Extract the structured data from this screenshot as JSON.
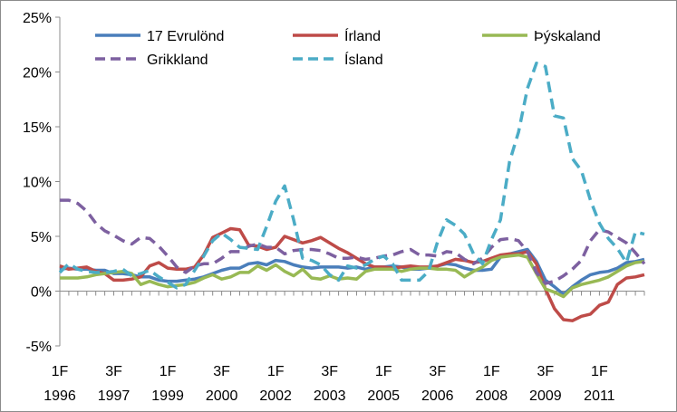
{
  "chart_data": {
    "type": "line",
    "ylim": [
      -5,
      25
    ],
    "y_ticks": [
      "-5%",
      "0%",
      "5%",
      "10%",
      "15%",
      "20%",
      "25%"
    ],
    "y_tick_values": [
      -5,
      0,
      5,
      10,
      15,
      20,
      25
    ],
    "x_ticks": [
      {
        "q": "1F",
        "year": "1996",
        "index": 0
      },
      {
        "q": "3F",
        "year": "1997",
        "index": 6
      },
      {
        "q": "1F",
        "year": "1999",
        "index": 12
      },
      {
        "q": "3F",
        "year": "2000",
        "index": 18
      },
      {
        "q": "1F",
        "year": "2002",
        "index": 24
      },
      {
        "q": "3F",
        "year": "2003",
        "index": 30
      },
      {
        "q": "1F",
        "year": "2005",
        "index": 36
      },
      {
        "q": "3F",
        "year": "2006",
        "index": 42
      },
      {
        "q": "1F",
        "year": "2008",
        "index": 48
      },
      {
        "q": "3F",
        "year": "2009",
        "index": 54
      },
      {
        "q": "1F",
        "year": "2011",
        "index": 60
      }
    ],
    "n_points": 66,
    "grid": false,
    "legend_position": "top",
    "series": [
      {
        "name": "17 Evrulönd",
        "color": "#4a7ebb",
        "dash": "solid",
        "values": [
          2.0,
          2.1,
          2.0,
          2.0,
          1.9,
          1.9,
          1.6,
          1.6,
          1.5,
          1.3,
          1.3,
          1.0,
          0.9,
          0.9,
          1.0,
          1.1,
          1.3,
          1.6,
          1.9,
          2.1,
          2.1,
          2.5,
          2.6,
          2.4,
          2.8,
          2.7,
          2.4,
          2.2,
          2.1,
          2.2,
          2.2,
          2.2,
          2.1,
          2.2,
          2.0,
          2.2,
          2.2,
          2.3,
          2.2,
          2.0,
          2.0,
          2.1,
          2.3,
          2.5,
          2.4,
          2.1,
          1.9,
          1.9,
          2.0,
          3.1,
          3.4,
          3.6,
          3.8,
          2.7,
          1.0,
          0.4,
          -0.3,
          0.4,
          1.0,
          1.5,
          1.7,
          1.8,
          2.1,
          2.6,
          2.7,
          2.9
        ]
      },
      {
        "name": "Írland",
        "color": "#be4b48",
        "dash": "solid",
        "values": [
          2.3,
          2.0,
          2.1,
          2.2,
          1.8,
          1.6,
          1.0,
          1.0,
          1.1,
          1.3,
          2.3,
          2.6,
          2.1,
          2.0,
          2.0,
          2.2,
          3.3,
          4.9,
          5.3,
          5.7,
          5.6,
          4.2,
          4.1,
          3.8,
          4.0,
          5.0,
          4.7,
          4.4,
          4.6,
          4.9,
          4.4,
          3.9,
          3.5,
          3.0,
          2.5,
          2.2,
          2.2,
          2.1,
          2.2,
          2.3,
          2.2,
          2.2,
          2.3,
          2.6,
          2.9,
          2.8,
          2.6,
          2.7,
          3.0,
          3.3,
          3.4,
          3.4,
          3.6,
          2.5,
          0.2,
          -1.6,
          -2.6,
          -2.7,
          -2.3,
          -2.1,
          -1.3,
          -1.0,
          0.6,
          1.2,
          1.3,
          1.5
        ]
      },
      {
        "name": "Þýskaland",
        "color": "#98b954",
        "dash": "solid",
        "values": [
          1.2,
          1.2,
          1.2,
          1.3,
          1.5,
          1.6,
          1.7,
          1.8,
          1.6,
          0.6,
          0.9,
          0.6,
          0.4,
          0.5,
          0.6,
          0.8,
          1.2,
          1.5,
          1.1,
          1.3,
          1.7,
          1.7,
          2.3,
          1.9,
          2.4,
          1.8,
          1.4,
          2.0,
          1.2,
          1.1,
          1.4,
          1.1,
          1.2,
          1.1,
          1.8,
          2.0,
          2.0,
          2.0,
          1.8,
          2.0,
          2.1,
          2.1,
          2.0,
          2.0,
          1.9,
          1.3,
          1.8,
          2.2,
          2.8,
          3.1,
          3.2,
          3.3,
          3.1,
          1.6,
          0.2,
          -0.1,
          -0.5,
          0.3,
          0.6,
          0.8,
          1.0,
          1.3,
          1.8,
          2.3,
          2.6,
          2.7
        ]
      },
      {
        "name": "Grikkland",
        "color": "#7d60a0",
        "dash": "dashed",
        "values": [
          8.3,
          8.3,
          8.0,
          7.3,
          6.2,
          5.5,
          5.1,
          4.6,
          4.3,
          4.9,
          4.8,
          4.1,
          3.2,
          2.2,
          1.7,
          2.3,
          2.5,
          2.5,
          3.0,
          3.6,
          3.6,
          4.1,
          4.3,
          4.0,
          4.0,
          3.4,
          3.7,
          3.8,
          3.8,
          3.7,
          3.4,
          3.0,
          3.0,
          3.1,
          2.9,
          3.0,
          3.2,
          3.3,
          3.6,
          3.8,
          3.3,
          3.3,
          3.2,
          3.6,
          3.5,
          2.9,
          2.5,
          3.0,
          4.0,
          4.7,
          4.8,
          4.6,
          3.6,
          1.7,
          0.7,
          0.9,
          1.4,
          2.0,
          2.8,
          4.6,
          5.6,
          5.4,
          4.9,
          4.4,
          3.5,
          2.5
        ]
      },
      {
        "name": "Ísland",
        "color": "#4bacc6",
        "dash": "dashed",
        "values": [
          1.7,
          2.5,
          2.0,
          1.8,
          1.7,
          1.7,
          1.8,
          2.0,
          1.4,
          1.6,
          1.9,
          1.3,
          0.8,
          0.3,
          0.6,
          1.9,
          3.2,
          4.6,
          5.3,
          4.7,
          4.0,
          3.9,
          3.8,
          5.9,
          8.2,
          9.6,
          6.5,
          3.0,
          2.8,
          2.4,
          1.5,
          1.0,
          2.3,
          2.1,
          2.4,
          2.9,
          3.2,
          2.5,
          1.0,
          1.0,
          1.0,
          1.8,
          4.5,
          6.5,
          6.0,
          5.2,
          3.4,
          2.5,
          4.7,
          6.5,
          11.8,
          14.5,
          18.5,
          20.8,
          20.5,
          16.0,
          15.8,
          12.1,
          11.0,
          8.3,
          6.2,
          4.8,
          3.9,
          2.6,
          5.4,
          5.2
        ]
      }
    ]
  }
}
